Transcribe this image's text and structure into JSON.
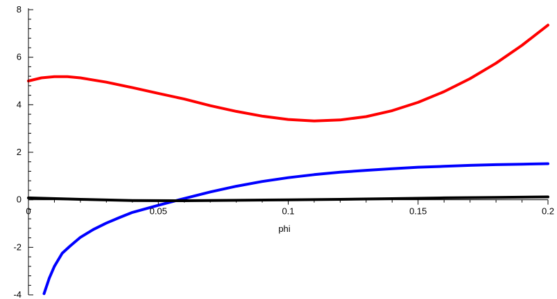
{
  "chart_data": {
    "type": "line",
    "title": "",
    "xlabel": "phi",
    "ylabel": "",
    "xlim": [
      0,
      0.2
    ],
    "ylim": [
      -4,
      8
    ],
    "grid": false,
    "legend": "none",
    "x_ticks": [
      {
        "value": 0,
        "label": "0"
      },
      {
        "value": 0.05,
        "label": "0.05"
      },
      {
        "value": 0.1,
        "label": "0.1"
      },
      {
        "value": 0.15,
        "label": "0.15"
      },
      {
        "value": 0.2,
        "label": "0.2"
      }
    ],
    "y_ticks": [
      {
        "value": -4,
        "label": "-4"
      },
      {
        "value": -2,
        "label": "-2"
      },
      {
        "value": 0,
        "label": "0"
      },
      {
        "value": 2,
        "label": "2"
      },
      {
        "value": 4,
        "label": "4"
      },
      {
        "value": 6,
        "label": "6"
      },
      {
        "value": 8,
        "label": "8"
      }
    ],
    "series": [
      {
        "color": "#ff0000",
        "x": [
          0,
          0.005,
          0.01,
          0.015,
          0.02,
          0.03,
          0.04,
          0.05,
          0.06,
          0.07,
          0.08,
          0.09,
          0.1,
          0.11,
          0.12,
          0.13,
          0.14,
          0.15,
          0.16,
          0.17,
          0.18,
          0.19,
          0.2
        ],
        "y": [
          5.0,
          5.13,
          5.18,
          5.18,
          5.13,
          4.95,
          4.72,
          4.48,
          4.24,
          3.96,
          3.72,
          3.52,
          3.38,
          3.32,
          3.36,
          3.5,
          3.75,
          4.1,
          4.55,
          5.1,
          5.75,
          6.5,
          7.35
        ]
      },
      {
        "color": "#0000ff",
        "x": [
          0.006,
          0.008,
          0.01,
          0.013,
          0.016,
          0.02,
          0.025,
          0.03,
          0.035,
          0.04,
          0.05,
          0.058,
          0.07,
          0.08,
          0.09,
          0.1,
          0.11,
          0.12,
          0.13,
          0.14,
          0.15,
          0.16,
          0.17,
          0.18,
          0.19,
          0.2
        ],
        "y": [
          -3.95,
          -3.3,
          -2.8,
          -2.25,
          -1.95,
          -1.58,
          -1.25,
          -0.98,
          -0.75,
          -0.53,
          -0.23,
          0.0,
          0.33,
          0.57,
          0.77,
          0.93,
          1.06,
          1.16,
          1.24,
          1.31,
          1.37,
          1.41,
          1.45,
          1.48,
          1.5,
          1.52
        ]
      },
      {
        "color": "#000000",
        "x": [
          0,
          0.02,
          0.04,
          0.06,
          0.08,
          0.1,
          0.12,
          0.14,
          0.16,
          0.18,
          0.2
        ],
        "y": [
          0.08,
          0.02,
          -0.03,
          -0.04,
          -0.02,
          0.0,
          0.02,
          0.05,
          0.08,
          0.1,
          0.12
        ]
      }
    ]
  }
}
